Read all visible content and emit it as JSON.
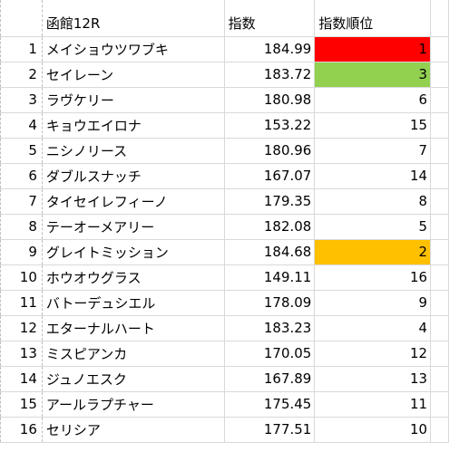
{
  "headers": {
    "name": "函館12R",
    "index": "指数",
    "rank": "指数順位"
  },
  "rows": [
    {
      "row": "1",
      "name": "メイショウツワブキ",
      "index": "184.99",
      "rank": "1",
      "highlight": "#ff0000"
    },
    {
      "row": "2",
      "name": "セイレーン",
      "index": "183.72",
      "rank": "3",
      "highlight": "#92d050"
    },
    {
      "row": "3",
      "name": "ラヴケリー",
      "index": "180.98",
      "rank": "6",
      "highlight": ""
    },
    {
      "row": "4",
      "name": "キョウエイロナ",
      "index": "153.22",
      "rank": "15",
      "highlight": ""
    },
    {
      "row": "5",
      "name": "ニシノリース",
      "index": "180.96",
      "rank": "7",
      "highlight": ""
    },
    {
      "row": "6",
      "name": "ダブルスナッチ",
      "index": "167.07",
      "rank": "14",
      "highlight": ""
    },
    {
      "row": "7",
      "name": "タイセイレフィーノ",
      "index": "179.35",
      "rank": "8",
      "highlight": ""
    },
    {
      "row": "8",
      "name": "テーオーメアリー",
      "index": "182.08",
      "rank": "5",
      "highlight": ""
    },
    {
      "row": "9",
      "name": "グレイトミッション",
      "index": "184.68",
      "rank": "2",
      "highlight": "#ffc000"
    },
    {
      "row": "10",
      "name": "ホウオウグラス",
      "index": "149.11",
      "rank": "16",
      "highlight": ""
    },
    {
      "row": "11",
      "name": "バトーデュシエル",
      "index": "178.09",
      "rank": "9",
      "highlight": ""
    },
    {
      "row": "12",
      "name": "エターナルハート",
      "index": "183.23",
      "rank": "4",
      "highlight": ""
    },
    {
      "row": "13",
      "name": "ミスピアンカ",
      "index": "170.05",
      "rank": "12",
      "highlight": ""
    },
    {
      "row": "14",
      "name": "ジュノエスク",
      "index": "167.89",
      "rank": "13",
      "highlight": ""
    },
    {
      "row": "15",
      "name": "アールラプチャー",
      "index": "175.45",
      "rank": "11",
      "highlight": ""
    },
    {
      "row": "16",
      "name": "セリシア",
      "index": "177.51",
      "rank": "10",
      "highlight": ""
    }
  ]
}
